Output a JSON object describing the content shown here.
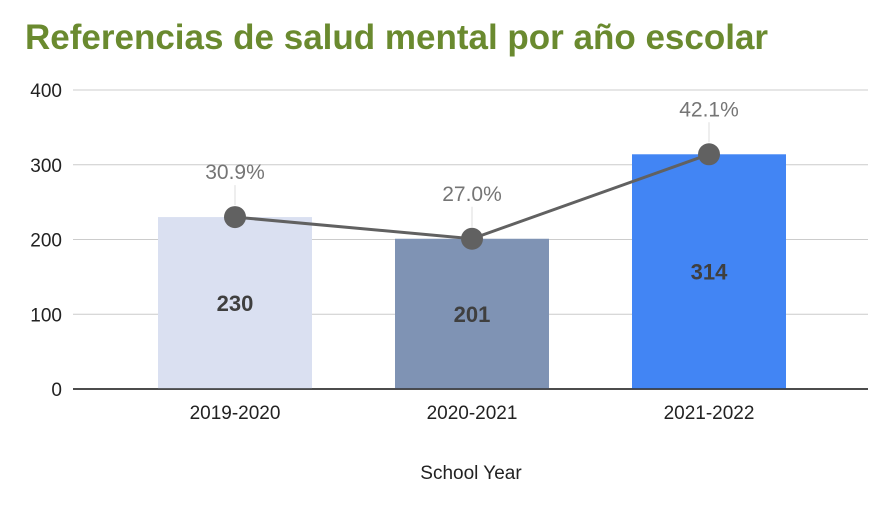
{
  "title": "Referencias de salud mental por año escolar",
  "chart_data": {
    "type": "bar",
    "title": "Referencias de salud mental por año escolar",
    "xlabel": "School Year",
    "ylabel": "",
    "ylim": [
      0,
      400
    ],
    "yticks": [
      "0",
      "100",
      "200",
      "300",
      "400"
    ],
    "categories": [
      "2019-2020",
      "2020-2021",
      "2021-2022"
    ],
    "values": [
      230,
      201,
      314
    ],
    "value_labels": [
      "230",
      "201",
      "314"
    ],
    "bar_colors": [
      "#dae0f1",
      "#7f93b4",
      "#4285f4"
    ],
    "line": {
      "values": [
        230,
        201,
        314
      ],
      "labels": [
        "30.9%",
        "27.0%",
        "42.1%"
      ],
      "color": "#616161"
    },
    "grid": true
  }
}
